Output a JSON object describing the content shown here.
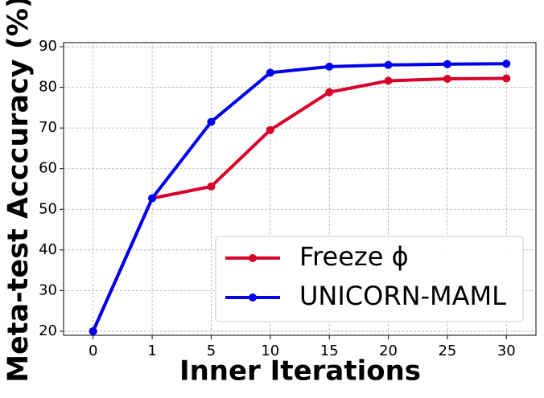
{
  "chart_data": {
    "type": "line",
    "x_label": "Inner Iterations",
    "y_label": "Meta-test Acccuracy (%)",
    "categories": [
      "0",
      "1",
      "5",
      "10",
      "15",
      "20",
      "25",
      "30"
    ],
    "series": [
      {
        "name": "Freeze ϕ",
        "color": "#d7002a",
        "values": [
          20,
          52.7,
          55.6,
          69.5,
          78.8,
          81.6,
          82.1,
          82.2
        ]
      },
      {
        "name": "UNICORN-MAML",
        "color": "#0000ee",
        "values": [
          20,
          52.7,
          71.5,
          83.6,
          85.1,
          85.5,
          85.7,
          85.8
        ]
      }
    ],
    "ylim": [
      19,
      91
    ],
    "yticks": [
      20,
      30,
      40,
      50,
      60,
      70,
      80,
      90
    ],
    "grid": true,
    "legend": "lower right"
  }
}
